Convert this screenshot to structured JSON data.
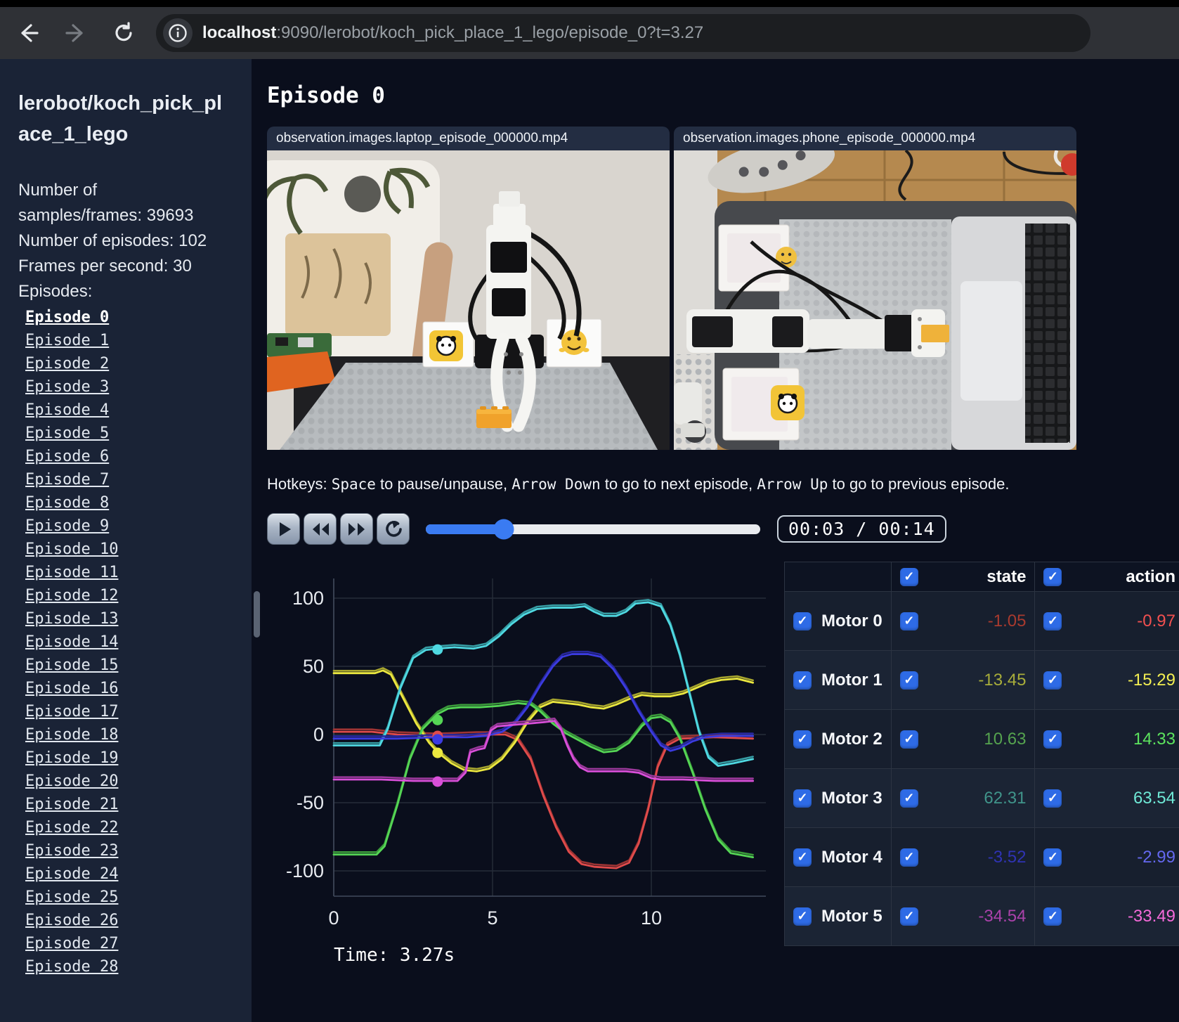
{
  "browser": {
    "url_host": "localhost",
    "url_rest": ":9090/lerobot/koch_pick_place_1_lego/episode_0?t=3.27"
  },
  "sidebar": {
    "title": "lerobot/koch_pick_place_1_lego",
    "info_lines": [
      "Number of samples/frames: 39693",
      "Number of episodes: 102",
      "Frames per second: 30",
      "Episodes:"
    ],
    "active_episode": "Episode 0",
    "episodes": [
      "Episode 0",
      "Episode 1",
      "Episode 2",
      "Episode 3",
      "Episode 4",
      "Episode 5",
      "Episode 6",
      "Episode 7",
      "Episode 8",
      "Episode 9",
      "Episode 10",
      "Episode 11",
      "Episode 12",
      "Episode 13",
      "Episode 14",
      "Episode 15",
      "Episode 16",
      "Episode 17",
      "Episode 18",
      "Episode 19",
      "Episode 20",
      "Episode 21",
      "Episode 22",
      "Episode 23",
      "Episode 24",
      "Episode 25",
      "Episode 26",
      "Episode 27",
      "Episode 28"
    ]
  },
  "main": {
    "title": "Episode 0",
    "videos": [
      {
        "label": "observation.images.laptop_episode_000000.mp4"
      },
      {
        "label": "observation.images.phone_episode_000000.mp4"
      }
    ],
    "hotkeys": {
      "parts": [
        "Hotkeys: ",
        "Space",
        " to pause/unpause, ",
        "Arrow Down",
        " to go to next episode, ",
        "Arrow Up",
        " to go to previous episode."
      ]
    },
    "player": {
      "buttons": [
        {
          "name": "play"
        },
        {
          "name": "rewind"
        },
        {
          "name": "fast-forward"
        },
        {
          "name": "loop"
        }
      ],
      "time": "00:03 / 00:14",
      "progress_pct": 23.3
    }
  },
  "chart_data": {
    "type": "line",
    "xlim": [
      0,
      13.2
    ],
    "ylim": [
      -100,
      100
    ],
    "xticks": [
      0,
      5,
      10
    ],
    "yticks": [
      100,
      50,
      0,
      -50,
      -100
    ],
    "grid": true,
    "current_time": 3.27,
    "time_text": "Time: 3.27s",
    "series": [
      {
        "name": "Motor 0",
        "color": "#e04b4b",
        "dim": "#9e3434",
        "state_now": -1.05,
        "action_now": -0.97,
        "points": [
          [
            0,
            2
          ],
          [
            1.2,
            2
          ],
          [
            2,
            0
          ],
          [
            3.27,
            -1
          ],
          [
            4.5,
            0
          ],
          [
            5.4,
            0
          ],
          [
            5.8,
            -4
          ],
          [
            6.2,
            -18
          ],
          [
            6.6,
            -45
          ],
          [
            7,
            -68
          ],
          [
            7.4,
            -86
          ],
          [
            7.8,
            -95
          ],
          [
            8.2,
            -97
          ],
          [
            8.9,
            -98
          ],
          [
            9.3,
            -94
          ],
          [
            9.6,
            -80
          ],
          [
            9.9,
            -55
          ],
          [
            10.2,
            -24
          ],
          [
            10.5,
            -8
          ],
          [
            10.9,
            -3
          ],
          [
            12,
            -2
          ],
          [
            13.2,
            -3
          ]
        ]
      },
      {
        "name": "Motor 1",
        "color": "#ece83f",
        "dim": "#a7a52e",
        "state_now": -13.45,
        "action_now": -15.29,
        "points": [
          [
            0,
            45
          ],
          [
            1.3,
            45
          ],
          [
            1.55,
            47
          ],
          [
            1.8,
            44
          ],
          [
            2.2,
            26
          ],
          [
            2.6,
            8
          ],
          [
            3,
            -6
          ],
          [
            3.27,
            -13
          ],
          [
            3.7,
            -21
          ],
          [
            4.1,
            -26
          ],
          [
            4.5,
            -27
          ],
          [
            4.9,
            -25
          ],
          [
            5.3,
            -18
          ],
          [
            5.7,
            -6
          ],
          [
            6.1,
            9
          ],
          [
            6.5,
            20
          ],
          [
            6.9,
            24
          ],
          [
            7.3,
            23
          ],
          [
            7.7,
            22
          ],
          [
            8.1,
            20
          ],
          [
            8.5,
            19
          ],
          [
            8.9,
            22
          ],
          [
            9.3,
            26
          ],
          [
            9.7,
            29
          ],
          [
            10.1,
            28
          ],
          [
            10.6,
            28
          ],
          [
            11,
            30
          ],
          [
            11.4,
            34
          ],
          [
            11.8,
            38
          ],
          [
            12.2,
            40
          ],
          [
            12.7,
            41
          ],
          [
            13.2,
            38
          ]
        ]
      },
      {
        "name": "Motor 2",
        "color": "#55d655",
        "dim": "#3b9b3b",
        "state_now": 10.63,
        "action_now": 14.33,
        "points": [
          [
            0,
            -88
          ],
          [
            1.35,
            -88
          ],
          [
            1.6,
            -82
          ],
          [
            2,
            -52
          ],
          [
            2.4,
            -18
          ],
          [
            2.8,
            4
          ],
          [
            3.27,
            15
          ],
          [
            3.6,
            19
          ],
          [
            4,
            20
          ],
          [
            4.6,
            20
          ],
          [
            5.2,
            21
          ],
          [
            5.8,
            23
          ],
          [
            6.2,
            22
          ],
          [
            6.5,
            17
          ],
          [
            6.9,
            8
          ],
          [
            7.3,
            1
          ],
          [
            7.7,
            -4
          ],
          [
            8.1,
            -9
          ],
          [
            8.5,
            -13
          ],
          [
            8.9,
            -12
          ],
          [
            9.3,
            -6
          ],
          [
            9.7,
            6
          ],
          [
            10,
            12
          ],
          [
            10.3,
            13
          ],
          [
            10.6,
            9
          ],
          [
            10.9,
            -3
          ],
          [
            11.3,
            -28
          ],
          [
            11.7,
            -55
          ],
          [
            12.1,
            -77
          ],
          [
            12.5,
            -87
          ],
          [
            13.2,
            -90
          ]
        ]
      },
      {
        "name": "Motor 3",
        "color": "#4fd9e2",
        "dim": "#379ea5",
        "state_now": 62.31,
        "action_now": 63.54,
        "points": [
          [
            0,
            -8
          ],
          [
            1.45,
            -8
          ],
          [
            1.7,
            4
          ],
          [
            2.1,
            34
          ],
          [
            2.5,
            56
          ],
          [
            2.9,
            62
          ],
          [
            3.27,
            63
          ],
          [
            3.8,
            64
          ],
          [
            4.4,
            63
          ],
          [
            4.8,
            65
          ],
          [
            5.2,
            72
          ],
          [
            5.6,
            81
          ],
          [
            6,
            88
          ],
          [
            6.4,
            92
          ],
          [
            6.9,
            93
          ],
          [
            7.5,
            93
          ],
          [
            7.9,
            94
          ],
          [
            8.2,
            90
          ],
          [
            8.5,
            87
          ],
          [
            8.9,
            87
          ],
          [
            9.2,
            90
          ],
          [
            9.5,
            96
          ],
          [
            9.9,
            97
          ],
          [
            10.3,
            94
          ],
          [
            10.6,
            80
          ],
          [
            10.9,
            58
          ],
          [
            11.2,
            30
          ],
          [
            11.5,
            2
          ],
          [
            11.8,
            -17
          ],
          [
            12.1,
            -23
          ],
          [
            12.6,
            -21
          ],
          [
            13.2,
            -18
          ]
        ]
      },
      {
        "name": "Motor 4",
        "color": "#3b3be0",
        "dim": "#28289e",
        "state_now": -3.52,
        "action_now": -2.99,
        "points": [
          [
            0,
            -3
          ],
          [
            2,
            -3
          ],
          [
            3.27,
            -2
          ],
          [
            4.2,
            -2
          ],
          [
            4.8,
            -1
          ],
          [
            5.3,
            2
          ],
          [
            5.7,
            8
          ],
          [
            6.1,
            20
          ],
          [
            6.5,
            36
          ],
          [
            6.9,
            50
          ],
          [
            7.2,
            57
          ],
          [
            7.5,
            59
          ],
          [
            8,
            59
          ],
          [
            8.4,
            57
          ],
          [
            8.8,
            48
          ],
          [
            9.2,
            34
          ],
          [
            9.6,
            17
          ],
          [
            10,
            2
          ],
          [
            10.3,
            -8
          ],
          [
            10.6,
            -12
          ],
          [
            10.9,
            -10
          ],
          [
            11.3,
            -5
          ],
          [
            11.7,
            -2
          ],
          [
            12.2,
            -1
          ],
          [
            13.2,
            -1
          ]
        ]
      },
      {
        "name": "Motor 5",
        "color": "#d94fd9",
        "dim": "#9b389b",
        "state_now": -34.54,
        "action_now": -33.49,
        "points": [
          [
            0,
            -33
          ],
          [
            1.5,
            -33
          ],
          [
            2.5,
            -34
          ],
          [
            3.27,
            -34
          ],
          [
            3.9,
            -34
          ],
          [
            4.15,
            -28
          ],
          [
            4.3,
            -13
          ],
          [
            4.55,
            -11
          ],
          [
            4.75,
            -10
          ],
          [
            4.95,
            3
          ],
          [
            5.15,
            6
          ],
          [
            5.6,
            7
          ],
          [
            6.1,
            8
          ],
          [
            6.6,
            9
          ],
          [
            6.95,
            10
          ],
          [
            7.15,
            4
          ],
          [
            7.35,
            -8
          ],
          [
            7.55,
            -18
          ],
          [
            7.75,
            -24
          ],
          [
            8,
            -27
          ],
          [
            8.6,
            -27
          ],
          [
            9.2,
            -27
          ],
          [
            9.6,
            -28
          ],
          [
            9.8,
            -30
          ],
          [
            10,
            -32
          ],
          [
            10.3,
            -33
          ],
          [
            11,
            -33
          ],
          [
            12,
            -34
          ],
          [
            13.2,
            -34
          ]
        ]
      }
    ]
  },
  "table": {
    "col_headers": [
      "state",
      "action"
    ],
    "rows": [
      {
        "label": "Motor 0",
        "state": "-1.05",
        "action": "-0.97",
        "state_color": "#a83a2e",
        "action_color": "#f25050"
      },
      {
        "label": "Motor 1",
        "state": "-13.45",
        "action": "-15.29",
        "state_color": "#a8ad3a",
        "action_color": "#f3ef52"
      },
      {
        "label": "Motor 2",
        "state": "10.63",
        "action": "14.33",
        "state_color": "#55a34f",
        "action_color": "#5ce45e"
      },
      {
        "label": "Motor 3",
        "state": "62.31",
        "action": "63.54",
        "state_color": "#40948a",
        "action_color": "#6fe9d6"
      },
      {
        "label": "Motor 4",
        "state": "-3.52",
        "action": "-2.99",
        "state_color": "#2f33b4",
        "action_color": "#6468ef"
      },
      {
        "label": "Motor 5",
        "state": "-34.54",
        "action": "-33.49",
        "state_color": "#ab42ab",
        "action_color": "#f56ad9"
      }
    ]
  }
}
